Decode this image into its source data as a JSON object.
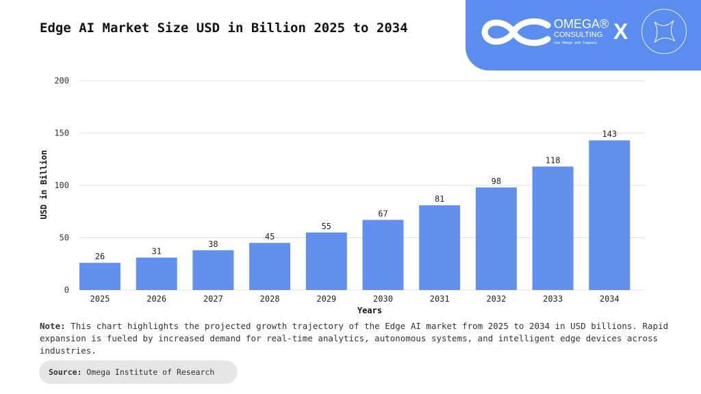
{
  "header": {
    "brand_name": "OMEGA®",
    "brand_sub": "CONSULTING",
    "brand_tag": "now Omega and Company",
    "separator": "X",
    "accent_color": "#5b8def"
  },
  "chart_data": {
    "type": "bar",
    "title": "Edge AI Market Size USD in Billion 2025 to 2034",
    "xlabel": "Years",
    "ylabel": "USD in Billion",
    "categories": [
      "2025",
      "2026",
      "2027",
      "2028",
      "2029",
      "2030",
      "2031",
      "2032",
      "2033",
      "2034"
    ],
    "values": [
      26,
      31,
      38,
      45,
      55,
      67,
      81,
      98,
      118,
      143
    ],
    "ylim": [
      0,
      200
    ],
    "yticks": [
      0,
      50,
      100,
      150,
      200
    ],
    "grid": true,
    "bar_color": "#6190ef"
  },
  "note": {
    "label": "Note:",
    "text": " This chart highlights the projected growth trajectory of the Edge AI market from 2025 to 2034 in USD billions. Rapid expansion is fueled by increased demand for real-time analytics, autonomous systems, and intelligent edge devices across industries."
  },
  "source": {
    "label": "Source:",
    "text": " Omega Institute of Research"
  }
}
